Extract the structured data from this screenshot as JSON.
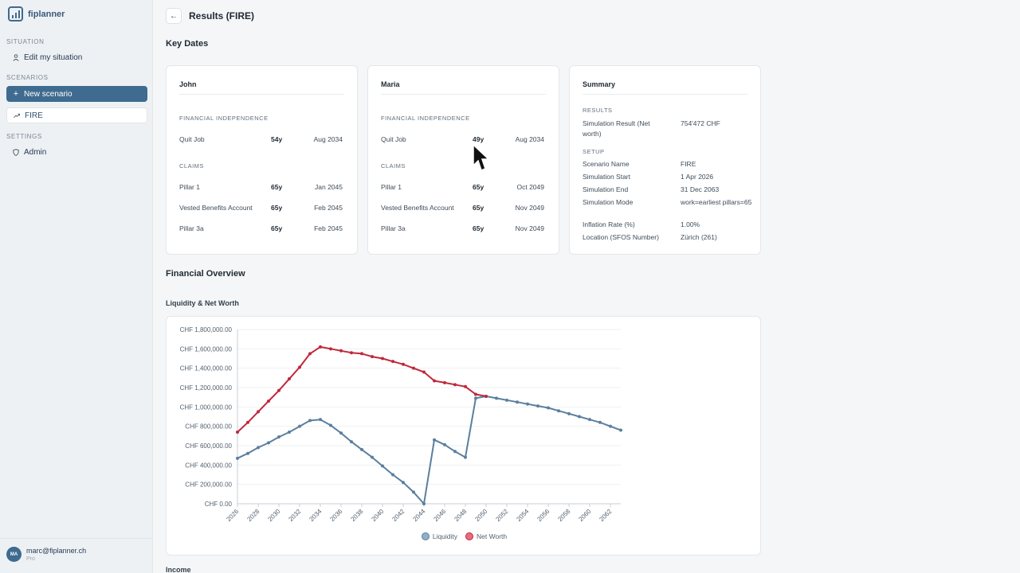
{
  "sidebar": {
    "brand": "fiplanner",
    "sections": {
      "situation": "SITUATION",
      "scenarios": "SCENARIOS",
      "settings": "SETTINGS"
    },
    "items": {
      "edit_situation": "Edit my situation",
      "new_scenario": "New scenario",
      "fire": "FIRE",
      "admin": "Admin"
    },
    "user": {
      "initials": "MA",
      "email": "marc@fiplanner.ch",
      "plan": "Pro"
    }
  },
  "header": {
    "back_icon": "arrow-left-icon",
    "title": "Results (FIRE)"
  },
  "key_dates": {
    "heading": "Key Dates",
    "persons": [
      {
        "name": "John",
        "fi_label": "FINANCIAL INDEPENDENCE",
        "quit": {
          "label": "Quit Job",
          "age": "54y",
          "date": "Aug 2034"
        },
        "claims_label": "CLAIMS",
        "claims": [
          {
            "label": "Pillar 1",
            "age": "65y",
            "date": "Jan 2045"
          },
          {
            "label": "Vested Benefits Account",
            "age": "65y",
            "date": "Feb 2045"
          },
          {
            "label": "Pillar 3a",
            "age": "65y",
            "date": "Feb 2045"
          }
        ]
      },
      {
        "name": "Maria",
        "fi_label": "FINANCIAL INDEPENDENCE",
        "quit": {
          "label": "Quit Job",
          "age": "49y",
          "date": "Aug 2034"
        },
        "claims_label": "CLAIMS",
        "claims": [
          {
            "label": "Pillar 1",
            "age": "65y",
            "date": "Oct 2049"
          },
          {
            "label": "Vested Benefits Account",
            "age": "65y",
            "date": "Nov 2049"
          },
          {
            "label": "Pillar 3a",
            "age": "65y",
            "date": "Nov 2049"
          }
        ]
      }
    ],
    "summary": {
      "title": "Summary",
      "results_label": "RESULTS",
      "results": [
        {
          "k": "Simulation Result (Net worth)",
          "v": "754'472 CHF"
        }
      ],
      "setup_label": "SETUP",
      "setup": [
        {
          "k": "Scenario Name",
          "v": "FIRE"
        },
        {
          "k": "Simulation Start",
          "v": "1 Apr 2026"
        },
        {
          "k": "Simulation End",
          "v": "31 Dec 2063"
        },
        {
          "k": "Simulation Mode",
          "v": "work=earliest pillars=65"
        },
        {
          "k": "Inflation Rate (%)",
          "v": "1.00%"
        },
        {
          "k": "Location (SFOS Number)",
          "v": "Zürich (261)"
        }
      ]
    }
  },
  "financial_overview": {
    "heading": "Financial Overview",
    "chart_title": "Liquidity & Net Worth",
    "next_section": "Income"
  },
  "chart_data": {
    "type": "line",
    "title": "Liquidity & Net Worth",
    "y_ticks": [
      "CHF 0.00",
      "CHF 200,000.00",
      "CHF 400,000.00",
      "CHF 600,000.00",
      "CHF 800,000.00",
      "CHF 1,000,000.00",
      "CHF 1,200,000.00",
      "CHF 1,400,000.00",
      "CHF 1,600,000.00",
      "CHF 1,800,000.00"
    ],
    "ylim": [
      0,
      1800000
    ],
    "x_ticks": [
      "2026",
      "2028",
      "2030",
      "2032",
      "2034",
      "2036",
      "2038",
      "2040",
      "2042",
      "2044",
      "2046",
      "2048",
      "2050",
      "2052",
      "2054",
      "2056",
      "2058",
      "2060",
      "2062"
    ],
    "xlim": [
      2026,
      2063
    ],
    "grid": true,
    "legend_position": "bottom",
    "series": [
      {
        "name": "Liquidity",
        "color": "#5b7f9e",
        "x": [
          2026,
          2027,
          2028,
          2029,
          2030,
          2031,
          2032,
          2033,
          2034,
          2035,
          2036,
          2037,
          2038,
          2039,
          2040,
          2041,
          2042,
          2043,
          2044,
          2045,
          2046,
          2047,
          2048,
          2049,
          2050,
          2051,
          2052,
          2053,
          2054,
          2055,
          2056,
          2057,
          2058,
          2059,
          2060,
          2061,
          2062,
          2063
        ],
        "values": [
          470000,
          520000,
          580000,
          630000,
          690000,
          740000,
          800000,
          860000,
          870000,
          810000,
          730000,
          640000,
          560000,
          480000,
          390000,
          300000,
          220000,
          120000,
          0,
          660000,
          610000,
          540000,
          480000,
          1090000,
          1110000,
          1090000,
          1070000,
          1050000,
          1030000,
          1010000,
          990000,
          960000,
          930000,
          900000,
          870000,
          840000,
          800000,
          760000
        ]
      },
      {
        "name": "Net Worth",
        "color": "#c0283b",
        "x": [
          2026,
          2027,
          2028,
          2029,
          2030,
          2031,
          2032,
          2033,
          2034,
          2035,
          2036,
          2037,
          2038,
          2039,
          2040,
          2041,
          2042,
          2043,
          2044,
          2045,
          2046,
          2047,
          2048,
          2049,
          2050
        ],
        "values": [
          740000,
          840000,
          950000,
          1060000,
          1170000,
          1290000,
          1410000,
          1550000,
          1620000,
          1600000,
          1580000,
          1560000,
          1550000,
          1520000,
          1500000,
          1470000,
          1440000,
          1400000,
          1360000,
          1270000,
          1250000,
          1230000,
          1210000,
          1130000,
          1110000
        ]
      }
    ]
  }
}
